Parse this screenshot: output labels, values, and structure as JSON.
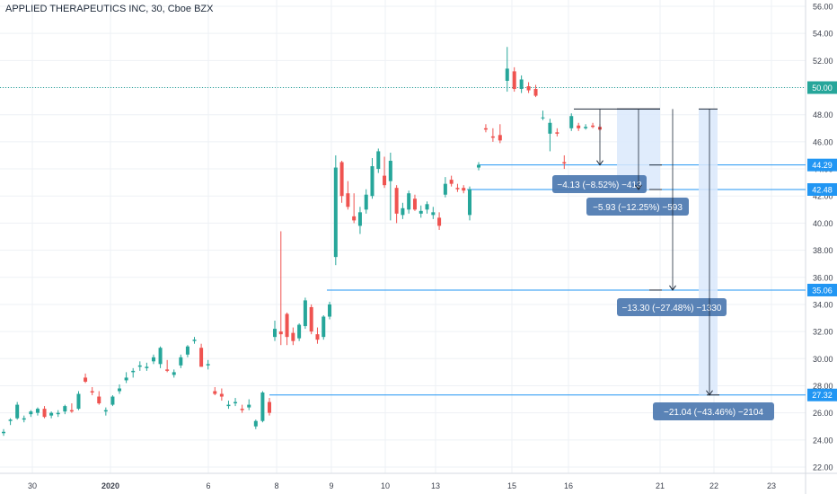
{
  "header": {
    "title": "APPLIED THERAPEUTICS INC, 30, Cboe BZX"
  },
  "colors": {
    "up": "#26a69a",
    "down": "#ef5350",
    "level_line": "#2196f3",
    "dotted_level": "#26a69a",
    "label_box": "#4c78b0",
    "measure_fill": "#dbe9fb",
    "grid": "#eef1f5",
    "axis_text": "#3a3f4b"
  },
  "chart_data": {
    "type": "candlestick",
    "title": "APPLIED THERAPEUTICS INC, 30, Cboe BZX",
    "y_ticks": [
      "22.00",
      "24.00",
      "26.00",
      "28.00",
      "30.00",
      "32.00",
      "34.00",
      "36.00",
      "38.00",
      "40.00",
      "42.00",
      "44.00",
      "46.00",
      "48.00",
      "50.00",
      "52.00",
      "54.00",
      "56.00"
    ],
    "ylim": [
      21.2,
      56.8
    ],
    "x_ticks": [
      {
        "label": "30",
        "bold": false
      },
      {
        "label": "2020",
        "bold": true
      },
      {
        "label": "6",
        "bold": false
      },
      {
        "label": "8",
        "bold": false
      },
      {
        "label": "9",
        "bold": false
      },
      {
        "label": "10",
        "bold": false
      },
      {
        "label": "13",
        "bold": false
      },
      {
        "label": "15",
        "bold": false
      },
      {
        "label": "16",
        "bold": false
      },
      {
        "label": "21",
        "bold": false
      },
      {
        "label": "22",
        "bold": false
      },
      {
        "label": "23",
        "bold": false
      }
    ],
    "grid": true,
    "price_levels": [
      {
        "label": "50.00",
        "value": 50.0,
        "style": "dotted"
      },
      {
        "label": "44.29",
        "value": 44.29,
        "style": "solid"
      },
      {
        "label": "42.48",
        "value": 42.48,
        "style": "solid"
      },
      {
        "label": "35.06",
        "value": 35.06,
        "style": "solid"
      },
      {
        "label": "27.32",
        "value": 27.32,
        "style": "solid"
      }
    ],
    "measurements": [
      {
        "label": "−4.13 (−8.52%) −413",
        "from": 48.42,
        "to": 44.29
      },
      {
        "label": "−5.93 (−12.25%) −593",
        "from": 48.42,
        "to": 42.48
      },
      {
        "label": "−13.30 (−27.48%) −1330",
        "from": 48.42,
        "to": 35.06
      },
      {
        "label": "−21.04 (−43.46%) −2104",
        "from": 48.42,
        "to": 27.32
      }
    ],
    "candles": [
      [
        24.5,
        24.8,
        24.3,
        24.6
      ],
      [
        25.4,
        25.6,
        25.1,
        25.5
      ],
      [
        25.6,
        26.8,
        25.5,
        26.6
      ],
      [
        25.5,
        25.8,
        25.3,
        25.6
      ],
      [
        25.9,
        26.2,
        25.7,
        26.1
      ],
      [
        26.0,
        26.4,
        25.8,
        26.3
      ],
      [
        26.3,
        26.5,
        25.6,
        25.7
      ],
      [
        25.8,
        26.1,
        25.6,
        26.0
      ],
      [
        25.9,
        26.2,
        25.7,
        26.0
      ],
      [
        26.1,
        26.6,
        25.9,
        26.5
      ],
      [
        26.2,
        26.7,
        26.0,
        26.1
      ],
      [
        26.3,
        27.6,
        26.2,
        27.4
      ],
      [
        28.6,
        28.9,
        28.2,
        28.3
      ],
      [
        27.6,
        27.9,
        27.3,
        27.5
      ],
      [
        27.2,
        27.6,
        26.6,
        26.7
      ],
      [
        26.1,
        26.4,
        25.8,
        26.2
      ],
      [
        26.6,
        27.3,
        26.5,
        27.2
      ],
      [
        27.6,
        28.1,
        27.4,
        27.8
      ],
      [
        28.4,
        29.0,
        28.2,
        28.6
      ],
      [
        29.0,
        29.3,
        28.6,
        29.1
      ],
      [
        29.4,
        29.8,
        29.1,
        29.5
      ],
      [
        29.3,
        29.7,
        29.1,
        29.4
      ],
      [
        29.8,
        30.3,
        29.6,
        30.1
      ],
      [
        29.6,
        30.9,
        29.3,
        30.8
      ],
      [
        29.2,
        29.9,
        29.0,
        29.1
      ],
      [
        28.8,
        29.2,
        28.6,
        29.0
      ],
      [
        29.5,
        30.3,
        29.3,
        30.1
      ],
      [
        30.3,
        31.0,
        30.1,
        30.9
      ],
      [
        31.3,
        31.6,
        31.1,
        31.4
      ],
      [
        30.8,
        31.1,
        29.4,
        29.4
      ],
      [
        29.5,
        29.9,
        29.2,
        29.6
      ],
      [
        27.6,
        27.9,
        27.3,
        27.4
      ],
      [
        27.4,
        27.8,
        26.9,
        27.2
      ],
      [
        26.5,
        26.9,
        26.3,
        26.6
      ],
      [
        26.7,
        27.1,
        26.5,
        26.8
      ],
      [
        26.3,
        26.6,
        26.0,
        26.2
      ],
      [
        26.4,
        27.0,
        26.2,
        26.6
      ],
      [
        25.0,
        25.5,
        24.8,
        25.4
      ],
      [
        25.4,
        27.6,
        25.3,
        27.5
      ],
      [
        26.8,
        27.1,
        25.8,
        26.0
      ],
      [
        31.6,
        32.8,
        31.3,
        32.2
      ],
      [
        32.0,
        39.4,
        31.0,
        31.8
      ],
      [
        33.3,
        33.4,
        31.0,
        31.6
      ],
      [
        31.9,
        32.3,
        31.0,
        31.3
      ],
      [
        31.5,
        32.6,
        31.3,
        32.5
      ],
      [
        32.4,
        34.5,
        32.2,
        34.3
      ],
      [
        33.8,
        34.0,
        31.8,
        32.0
      ],
      [
        31.8,
        32.3,
        31.1,
        31.4
      ],
      [
        31.6,
        33.2,
        31.4,
        33.1
      ],
      [
        33.1,
        34.2,
        32.9,
        34.0
      ],
      [
        37.5,
        45.0,
        36.9,
        44.1
      ],
      [
        44.5,
        44.6,
        41.5,
        42.0
      ],
      [
        42.2,
        43.1,
        41.0,
        41.2
      ],
      [
        40.5,
        42.2,
        40.0,
        40.2
      ],
      [
        39.8,
        41.2,
        39.2,
        40.8
      ],
      [
        41.0,
        42.5,
        40.7,
        42.1
      ],
      [
        42.0,
        44.8,
        41.8,
        44.2
      ],
      [
        44.0,
        45.5,
        43.7,
        45.3
      ],
      [
        43.5,
        44.9,
        42.6,
        42.8
      ],
      [
        43.1,
        45.2,
        40.2,
        44.6
      ],
      [
        42.6,
        42.8,
        40.0,
        40.7
      ],
      [
        40.6,
        41.5,
        40.3,
        41.1
      ],
      [
        41.0,
        42.4,
        40.7,
        42.2
      ],
      [
        41.8,
        42.1,
        40.9,
        41.0
      ],
      [
        40.7,
        41.3,
        40.4,
        40.9
      ],
      [
        41.0,
        41.6,
        40.7,
        41.4
      ],
      [
        40.6,
        41.2,
        40.3,
        40.8
      ],
      [
        40.4,
        40.8,
        39.5,
        39.8
      ],
      [
        42.1,
        43.4,
        41.9,
        42.9
      ],
      [
        43.2,
        43.5,
        42.7,
        42.9
      ],
      [
        42.6,
        42.9,
        42.3,
        42.5
      ],
      [
        42.6,
        42.8,
        42.2,
        42.4
      ],
      [
        40.6,
        42.7,
        40.2,
        42.5
      ],
      [
        44.1,
        44.5,
        43.9,
        44.3
      ],
      [
        47.0,
        47.3,
        46.7,
        46.9
      ],
      [
        46.4,
        47.0,
        46.0,
        46.3
      ],
      [
        46.5,
        47.3,
        45.9,
        46.1
      ],
      [
        50.5,
        53.0,
        49.7,
        51.4
      ],
      [
        51.2,
        51.5,
        49.7,
        49.9
      ],
      [
        49.9,
        50.9,
        49.6,
        50.6
      ],
      [
        50.1,
        50.4,
        49.6,
        49.8
      ],
      [
        49.9,
        50.2,
        49.3,
        49.4
      ],
      [
        47.8,
        48.3,
        47.6,
        47.8
      ],
      [
        46.6,
        47.7,
        45.3,
        47.4
      ],
      [
        46.7,
        47.0,
        46.4,
        46.6
      ],
      [
        44.5,
        45.0,
        44.0,
        44.4
      ],
      [
        47.0,
        48.1,
        46.8,
        47.9
      ],
      [
        47.2,
        47.4,
        46.8,
        47.0
      ],
      [
        47.0,
        47.3,
        46.9,
        47.1
      ],
      [
        47.2,
        47.4,
        47.0,
        47.1
      ],
      [
        47.1,
        47.3,
        46.8,
        46.9
      ]
    ]
  }
}
